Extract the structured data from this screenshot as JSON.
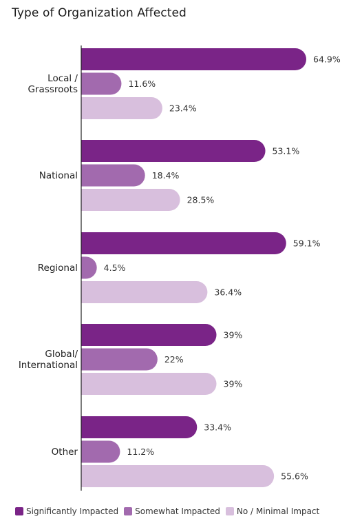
{
  "chart_data": {
    "type": "bar",
    "orientation": "horizontal",
    "title": "Type of Organization Affected",
    "categories": [
      [
        "Local /",
        "Grassroots"
      ],
      [
        "National"
      ],
      [
        "Regional"
      ],
      [
        "Global/",
        "International"
      ],
      [
        "Other"
      ]
    ],
    "series": [
      {
        "name": "Significantly Impacted",
        "color": "#7a2487",
        "values": [
          64.9,
          53.1,
          59.1,
          39,
          33.4
        ],
        "labels": [
          "64.9%",
          "53.1%",
          "59.1%",
          "39%",
          "33.4%"
        ]
      },
      {
        "name": "Somewhat Impacted",
        "color": "#a26aae",
        "values": [
          11.6,
          18.4,
          4.5,
          22,
          11.2
        ],
        "labels": [
          "11.6%",
          "18.4%",
          "4.5%",
          "22%",
          "11.2%"
        ]
      },
      {
        "name": "No / Minimal Impact",
        "color": "#d8bfdd",
        "values": [
          23.4,
          28.5,
          36.4,
          39,
          55.6
        ],
        "labels": [
          "23.4%",
          "28.5%",
          "36.4%",
          "39%",
          "55.6%"
        ]
      }
    ],
    "xlim": [
      0,
      100
    ],
    "grid": false,
    "axis": "left-baseline-only",
    "legend_position": "bottom"
  }
}
